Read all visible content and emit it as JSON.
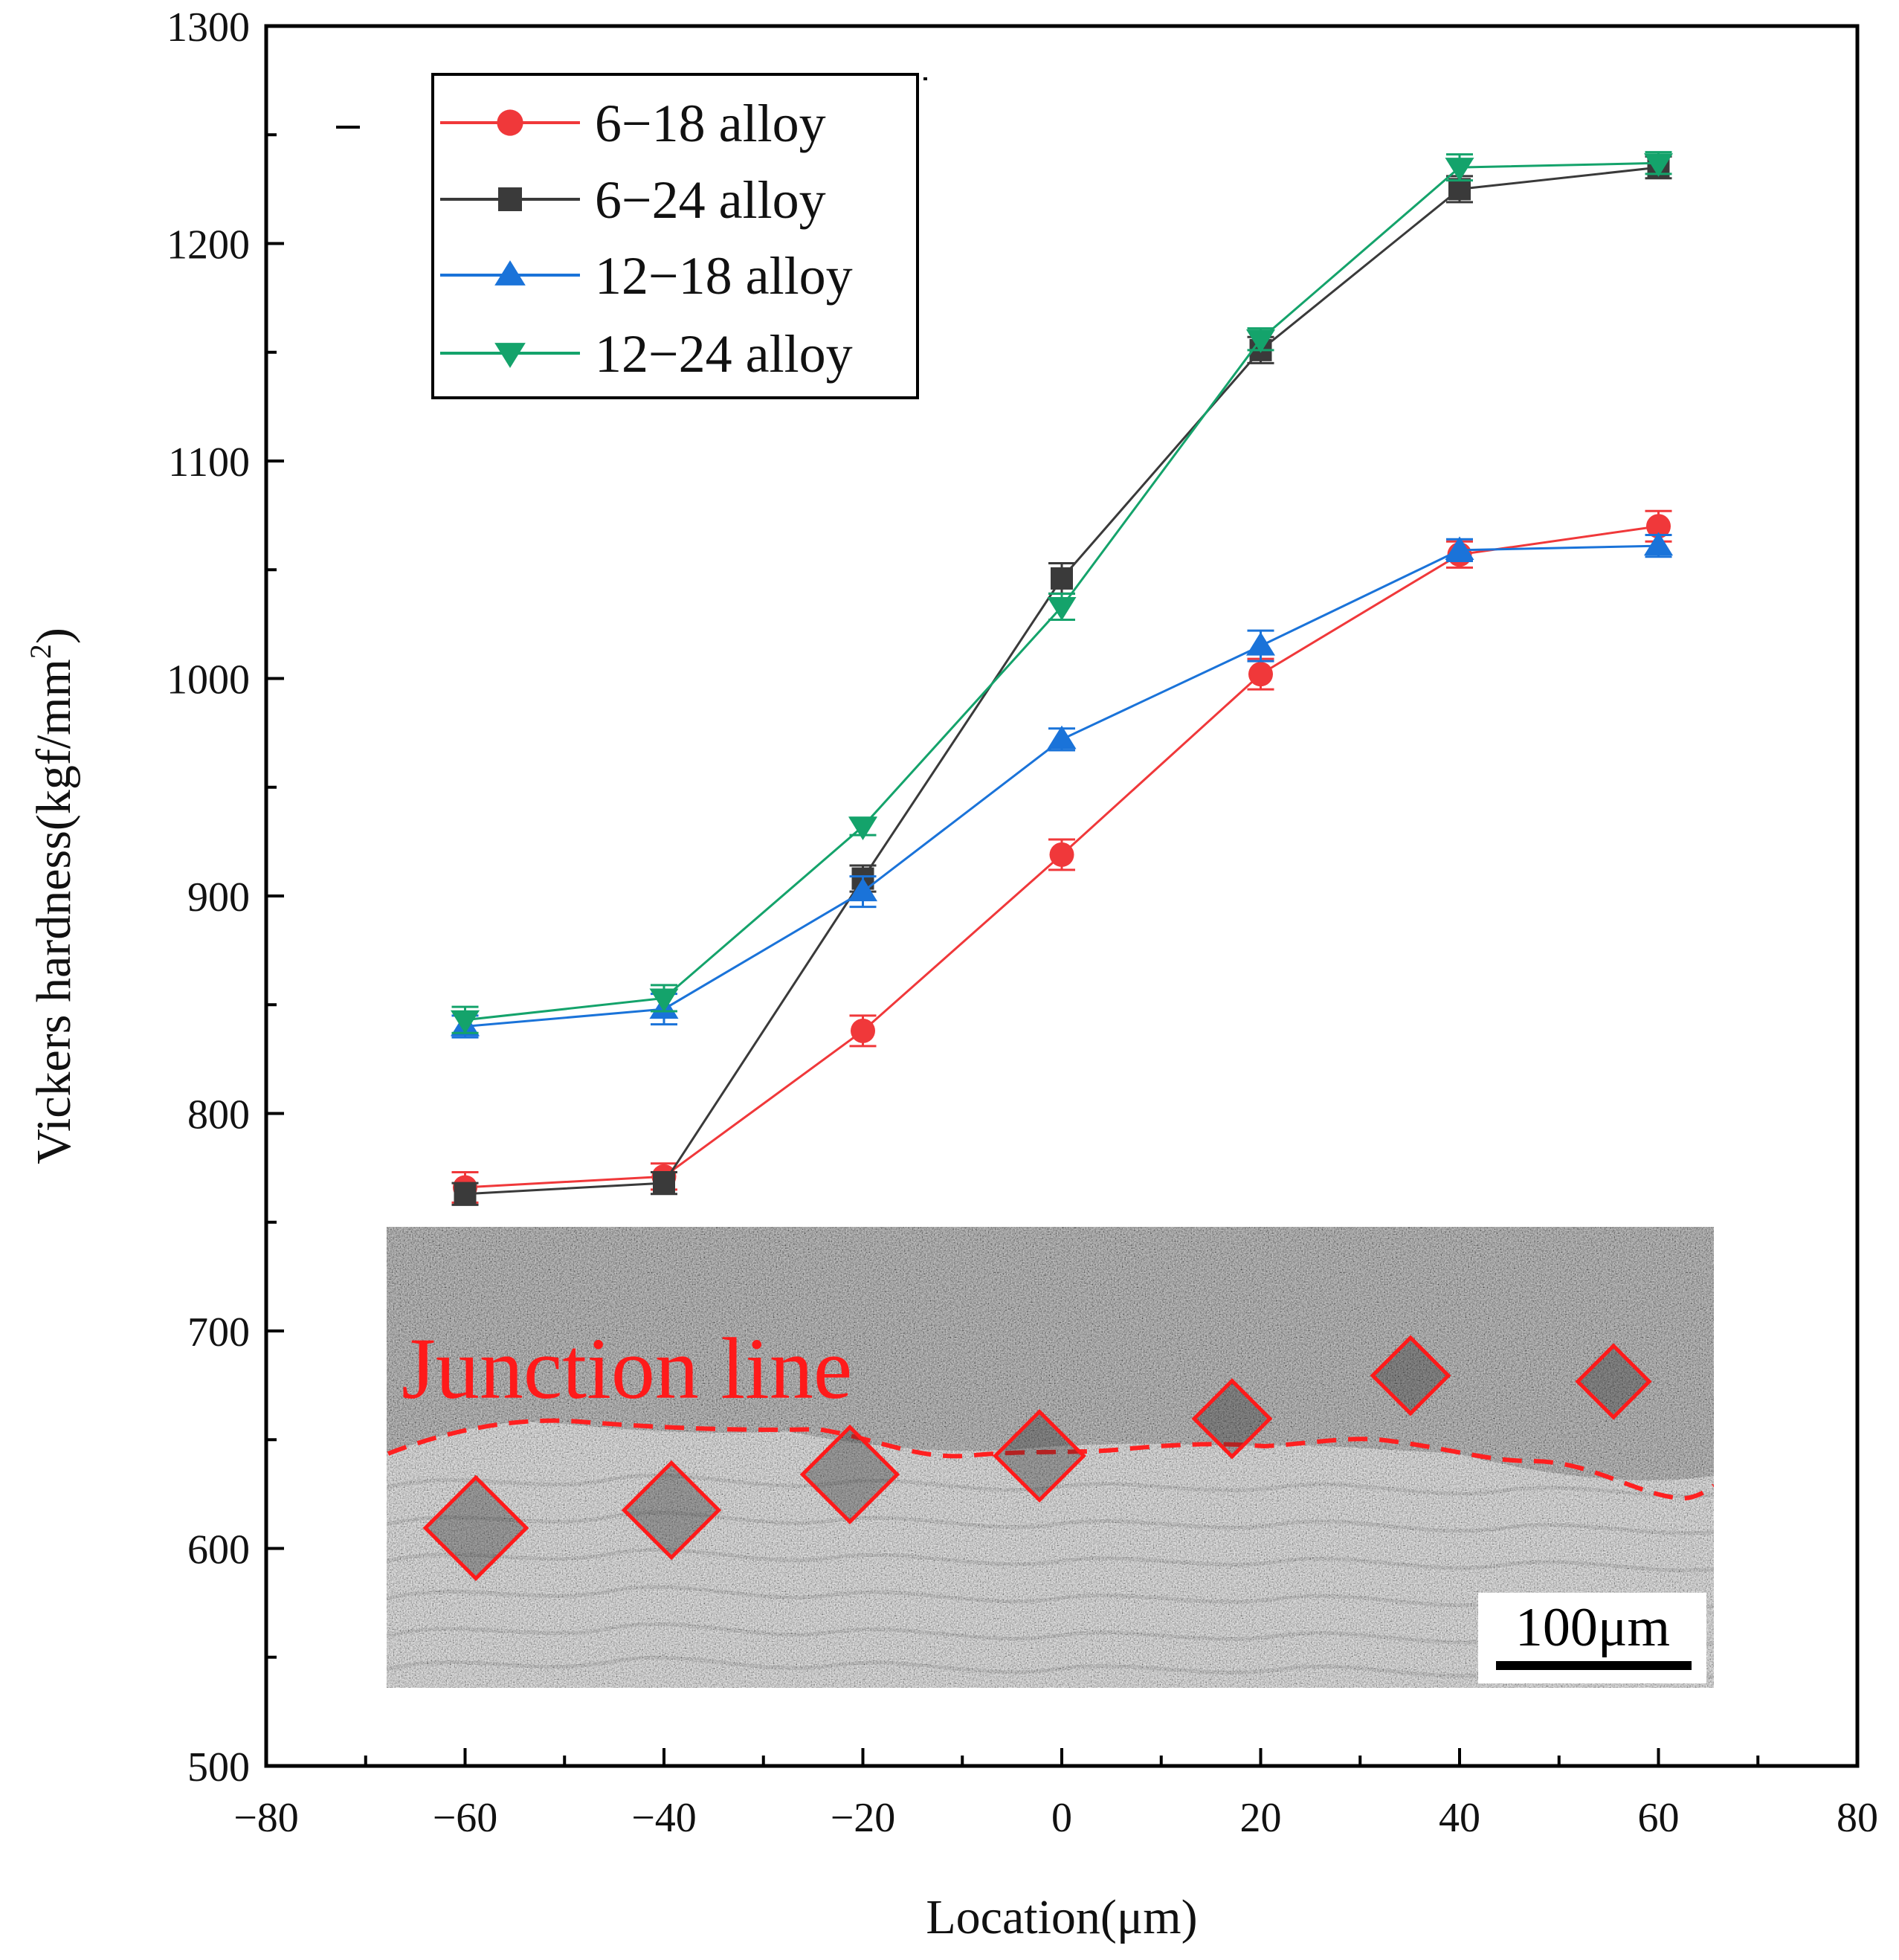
{
  "chart_data": {
    "type": "line",
    "title": "",
    "xlabel": "Location(μm)",
    "ylabel": "Vickers hardness(kgf/mm",
    "ylabel_superscript": "2",
    "ylabel_suffix": ")",
    "xlim": [
      -80,
      80
    ],
    "ylim": [
      500,
      1300
    ],
    "x_ticks": [
      -80,
      -60,
      -40,
      -20,
      0,
      20,
      40,
      60,
      80
    ],
    "x_tick_labels": [
      "−80",
      "−60",
      "−40",
      "−20",
      "0",
      "20",
      "40",
      "60",
      "80"
    ],
    "y_ticks": [
      500,
      600,
      700,
      800,
      900,
      1000,
      1100,
      1200,
      1300
    ],
    "y_tick_labels": [
      "500",
      "600",
      "700",
      "800",
      "900",
      "1000",
      "1100",
      "1200",
      "1300"
    ],
    "grid": false,
    "legend_position": "top-left",
    "x": [
      -60,
      -40,
      -20,
      0,
      20,
      40,
      60
    ],
    "series": [
      {
        "name": "6−18 alloy",
        "color": "#f0383a",
        "marker": "circle",
        "values": [
          766,
          771,
          838,
          919,
          1002,
          1057,
          1070
        ],
        "errors": [
          7,
          6,
          7,
          7,
          7,
          6,
          7
        ]
      },
      {
        "name": "6−24 alloy",
        "color": "#3a3a3a",
        "marker": "square",
        "values": [
          763,
          768,
          908,
          1046,
          1151,
          1225,
          1235
        ],
        "errors": [
          5,
          5,
          6,
          7,
          6,
          6,
          5
        ]
      },
      {
        "name": "12−18 alloy",
        "color": "#1a73d9",
        "marker": "triangle-up",
        "values": [
          840,
          848,
          902,
          972,
          1015,
          1059,
          1061
        ],
        "errors": [
          5,
          7,
          7,
          5,
          7,
          5,
          5
        ]
      },
      {
        "name": "12−24 alloy",
        "color": "#14a36b",
        "marker": "triangle-down",
        "values": [
          843,
          853,
          932,
          1033,
          1156,
          1235,
          1237
        ],
        "errors": [
          6,
          6,
          4,
          6,
          5,
          6,
          5
        ]
      }
    ],
    "annotations": {
      "junction_label": "Junction line",
      "scale_bar_label": "100μm",
      "inset": "micrograph showing indentation marks along a dashed junction line"
    }
  }
}
